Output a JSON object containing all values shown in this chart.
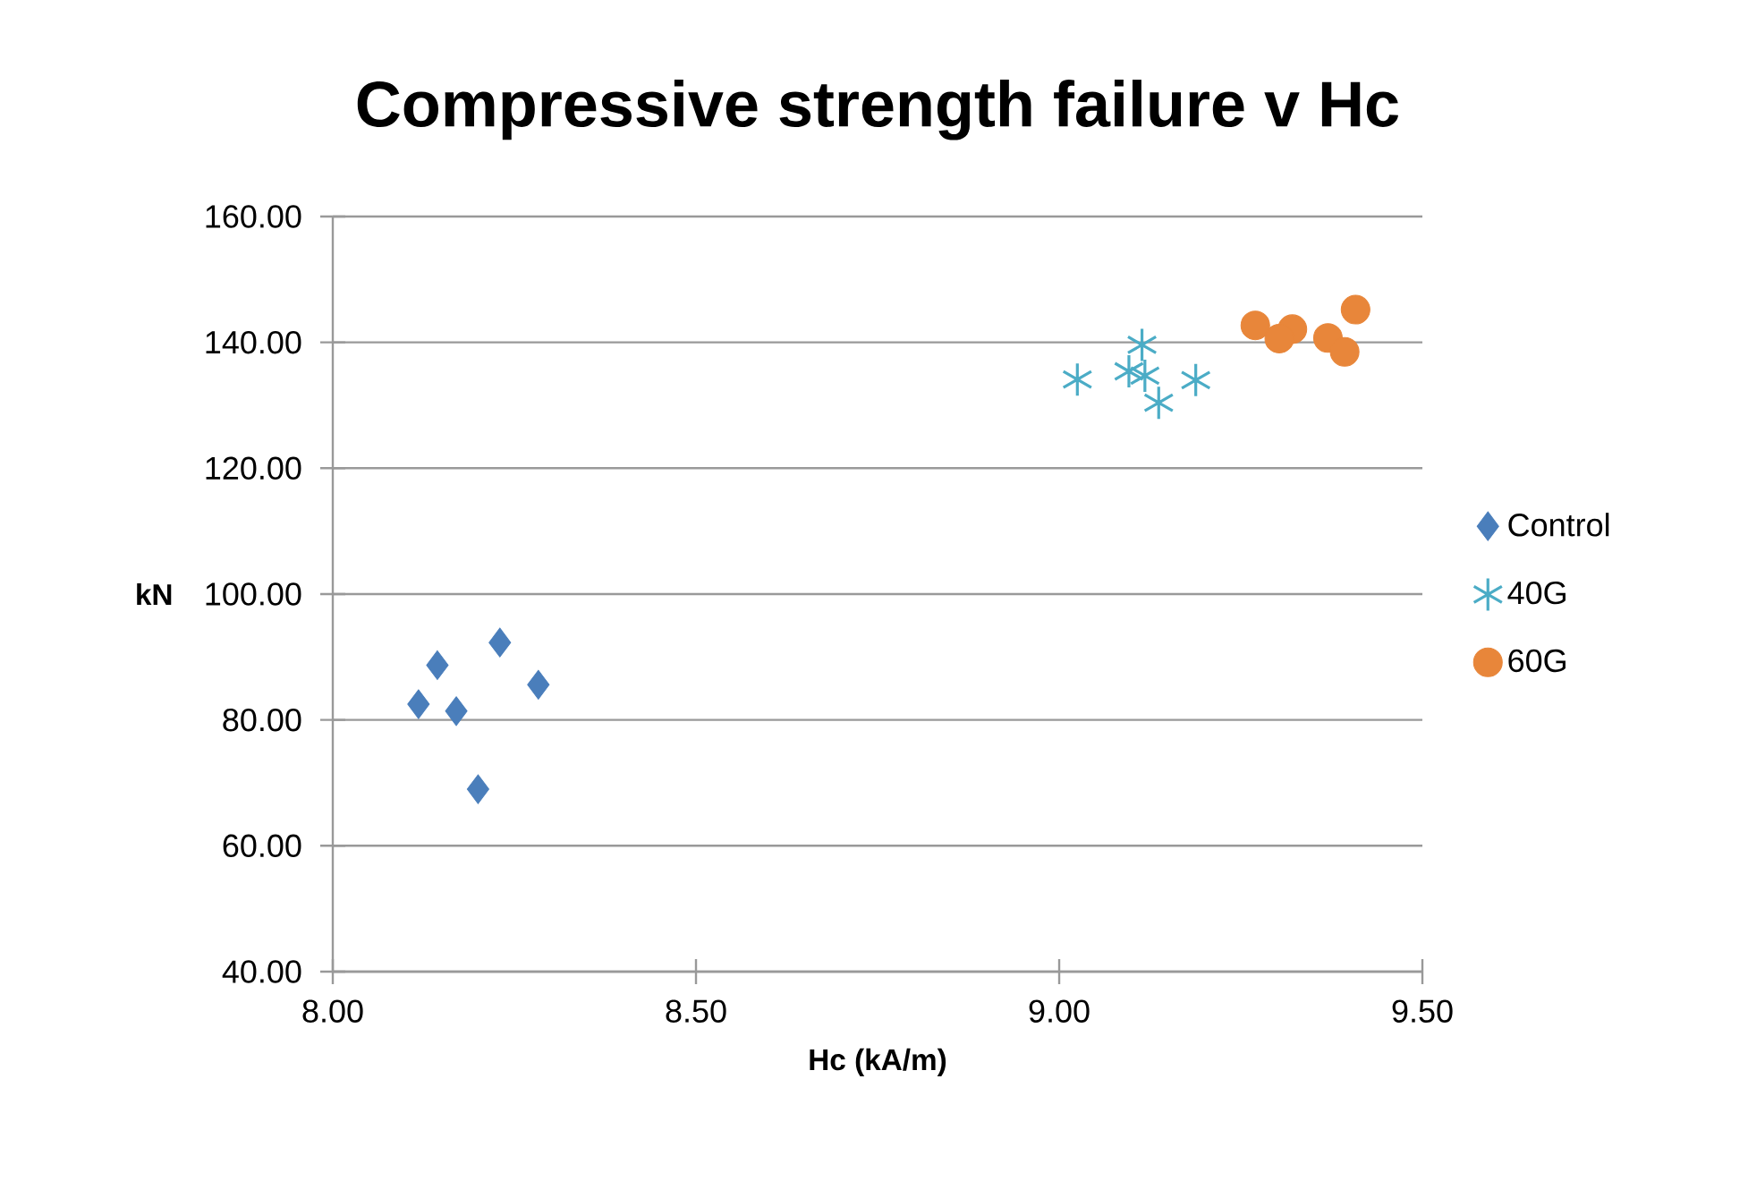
{
  "chart_data": {
    "type": "scatter",
    "title": "Compressive strength failure v Hc",
    "xlabel": "Hc (kA/m)",
    "ylabel": "kN",
    "xlim": [
      8.0,
      9.5
    ],
    "ylim": [
      40,
      160
    ],
    "xticks": [
      {
        "value": 8.0,
        "label": "8.00"
      },
      {
        "value": 8.5,
        "label": "8.50"
      },
      {
        "value": 9.0,
        "label": "9.00"
      },
      {
        "value": 9.5,
        "label": "9.50"
      }
    ],
    "yticks": [
      {
        "value": 40,
        "label": "40.00"
      },
      {
        "value": 60,
        "label": "60.00"
      },
      {
        "value": 80,
        "label": "80.00"
      },
      {
        "value": 100,
        "label": "100.00"
      },
      {
        "value": 120,
        "label": "120.00"
      },
      {
        "value": 140,
        "label": "140.00"
      },
      {
        "value": 160,
        "label": "160.00"
      }
    ],
    "grid": "y",
    "legend": "right",
    "series": [
      {
        "name": "Control",
        "color": "#4a7ebb",
        "marker": "diamond",
        "x": [
          8.144,
          8.23,
          8.118,
          8.17,
          8.283,
          8.2
        ],
        "values": [
          88.7,
          92.3,
          82.5,
          81.4,
          85.6,
          69.0
        ]
      },
      {
        "name": "40G",
        "color": "#4bacc6",
        "marker": "cross",
        "x": [
          9.025,
          9.114,
          9.096,
          9.118,
          9.137,
          9.188
        ],
        "values": [
          134.1,
          139.6,
          135.4,
          134.7,
          130.4,
          134.0
        ]
      },
      {
        "name": "60G",
        "color": "#e8863a",
        "marker": "circle",
        "x": [
          9.27,
          9.321,
          9.303,
          9.37,
          9.393,
          9.408
        ],
        "values": [
          142.7,
          142.1,
          140.6,
          140.7,
          138.5,
          145.2
        ]
      }
    ]
  }
}
